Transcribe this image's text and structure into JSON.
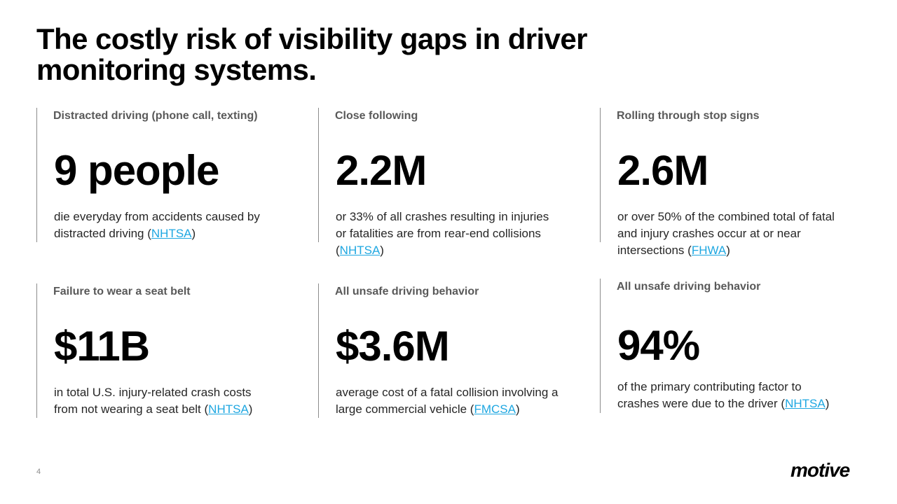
{
  "title": "The costly risk of visibility gaps in driver monitoring systems.",
  "stats": [
    {
      "label": "Distracted driving (phone call, texting)",
      "value": "9 people",
      "desc_text": "die everyday from accidents caused by distracted driving (",
      "source": "NHTSA",
      "desc_end": ")"
    },
    {
      "label": "Close following",
      "value": "2.2M",
      "desc_text": "or 33% of all crashes resulting in injuries or fatalities are from rear-end collisions (",
      "source": "NHTSA",
      "desc_end": ")"
    },
    {
      "label": "Rolling through stop signs",
      "value": "2.6M",
      "desc_text": "or over 50% of the combined total of fatal and injury crashes occur at or near intersections (",
      "source": "FHWA",
      "desc_end": ")"
    },
    {
      "label": "Failure to wear a seat belt",
      "value": "$11B",
      "desc_text": "in total U.S. injury-related crash costs from not wearing a seat belt (",
      "source": "NHTSA",
      "desc_end": ")"
    },
    {
      "label": "All unsafe driving behavior",
      "value": "$3.6M",
      "desc_text": "average cost of a fatal collision involving a large commercial vehicle (",
      "source": "FMCSA",
      "desc_end": ")"
    },
    {
      "label": "All unsafe driving behavior",
      "value": "94%",
      "desc_text": "of the primary contributing factor to crashes were due to the driver (",
      "source": "NHTSA",
      "desc_end": ")"
    }
  ],
  "footer": {
    "page_number": "4",
    "logo_text": "motive"
  },
  "colors": {
    "link": "#1ea7e1",
    "divider": "#8c8c8c",
    "label": "#595959"
  }
}
